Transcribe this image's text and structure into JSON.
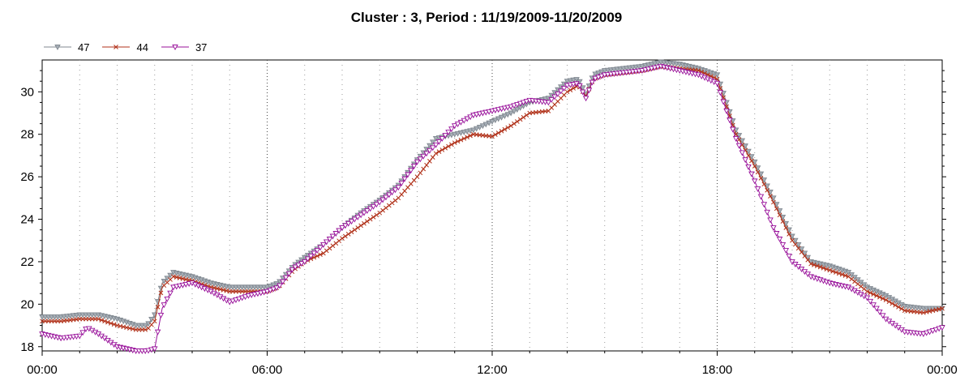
{
  "chart_data": {
    "type": "line",
    "title": "Cluster : 3, Period : 11/19/2009-11/20/2009",
    "xlabel": "",
    "ylabel": "",
    "x_unit": "hours",
    "xlim": [
      0,
      24
    ],
    "ylim": [
      17.8,
      31.5
    ],
    "x_ticks": [
      0,
      6,
      12,
      18,
      24
    ],
    "x_tick_labels": [
      "00:00",
      "06:00",
      "12:00",
      "18:00",
      "00:00"
    ],
    "y_ticks": [
      18,
      20,
      22,
      24,
      26,
      28,
      30
    ],
    "y_tick_labels": [
      "18",
      "20",
      "22",
      "24",
      "26",
      "28",
      "30"
    ],
    "grid": "dotted vertical lines",
    "legend_position": "top-left",
    "series": [
      {
        "name": "47",
        "color": "#808890",
        "marker": "triangle-down",
        "x": [
          0.0,
          0.5,
          1.0,
          1.5,
          2.0,
          2.5,
          2.8,
          3.0,
          3.2,
          3.5,
          4.0,
          4.5,
          5.0,
          5.5,
          6.0,
          6.3,
          6.7,
          7.0,
          7.5,
          8.0,
          8.5,
          9.0,
          9.5,
          10.0,
          10.5,
          11.0,
          11.5,
          12.0,
          12.5,
          13.0,
          13.5,
          14.0,
          14.3,
          14.5,
          14.7,
          15.0,
          15.5,
          16.0,
          16.5,
          17.0,
          17.5,
          18.0,
          18.5,
          19.0,
          19.5,
          20.0,
          20.5,
          21.0,
          21.5,
          22.0,
          22.5,
          23.0,
          23.5,
          24.0
        ],
        "y": [
          19.4,
          19.4,
          19.5,
          19.5,
          19.3,
          19.0,
          19.0,
          19.5,
          21.0,
          21.5,
          21.3,
          21.0,
          20.8,
          20.8,
          20.8,
          21.0,
          21.8,
          22.2,
          22.8,
          23.6,
          24.3,
          24.9,
          25.6,
          26.8,
          27.8,
          28.0,
          28.2,
          28.6,
          29.0,
          29.5,
          29.7,
          30.5,
          30.6,
          29.9,
          30.8,
          31.0,
          31.1,
          31.2,
          31.4,
          31.3,
          31.1,
          30.8,
          28.2,
          26.7,
          25.0,
          23.2,
          22.0,
          21.8,
          21.5,
          20.8,
          20.4,
          19.9,
          19.8,
          19.8
        ]
      },
      {
        "name": "44",
        "color": "#b03018",
        "marker": "x",
        "x": [
          0.0,
          0.5,
          1.0,
          1.5,
          2.0,
          2.5,
          2.8,
          3.0,
          3.2,
          3.5,
          4.0,
          4.5,
          5.0,
          5.5,
          6.0,
          6.3,
          6.7,
          7.0,
          7.5,
          8.0,
          8.5,
          9.0,
          9.5,
          10.0,
          10.5,
          11.0,
          11.5,
          12.0,
          12.5,
          13.0,
          13.5,
          14.0,
          14.3,
          14.5,
          14.7,
          15.0,
          15.5,
          16.0,
          16.5,
          17.0,
          17.5,
          18.0,
          18.5,
          19.0,
          19.5,
          20.0,
          20.5,
          21.0,
          21.5,
          22.0,
          22.5,
          23.0,
          23.5,
          24.0
        ],
        "y": [
          19.2,
          19.2,
          19.3,
          19.3,
          19.0,
          18.8,
          18.8,
          19.2,
          20.8,
          21.3,
          21.1,
          20.8,
          20.6,
          20.6,
          20.6,
          20.8,
          21.6,
          22.0,
          22.4,
          23.1,
          23.7,
          24.3,
          25.0,
          26.0,
          27.1,
          27.6,
          28.0,
          27.9,
          28.4,
          29.0,
          29.1,
          30.0,
          30.3,
          29.8,
          30.6,
          30.8,
          30.9,
          31.0,
          31.2,
          31.1,
          31.0,
          30.6,
          28.0,
          26.5,
          24.8,
          23.0,
          21.9,
          21.6,
          21.3,
          20.6,
          20.2,
          19.7,
          19.6,
          19.8
        ]
      },
      {
        "name": "37",
        "color": "#98109a",
        "marker": "triangle-down-open",
        "x": [
          0.0,
          0.5,
          1.0,
          1.2,
          1.5,
          2.0,
          2.5,
          2.8,
          3.0,
          3.2,
          3.5,
          4.0,
          4.5,
          5.0,
          5.5,
          6.0,
          6.3,
          6.7,
          7.0,
          7.5,
          8.0,
          8.5,
          9.0,
          9.5,
          10.0,
          10.5,
          11.0,
          11.5,
          12.0,
          12.5,
          13.0,
          13.5,
          14.0,
          14.3,
          14.5,
          14.7,
          15.0,
          15.5,
          16.0,
          16.5,
          17.0,
          17.5,
          18.0,
          18.5,
          19.0,
          19.5,
          20.0,
          20.5,
          21.0,
          21.5,
          22.0,
          22.5,
          23.0,
          23.5,
          24.0
        ],
        "y": [
          18.6,
          18.4,
          18.5,
          18.9,
          18.6,
          18.0,
          17.8,
          17.8,
          17.9,
          19.8,
          20.8,
          21.0,
          20.6,
          20.1,
          20.4,
          20.6,
          20.8,
          21.7,
          22.0,
          22.8,
          23.6,
          24.2,
          24.8,
          25.5,
          26.7,
          27.5,
          28.4,
          28.9,
          29.1,
          29.3,
          29.6,
          29.5,
          30.3,
          30.4,
          29.7,
          30.6,
          30.8,
          30.9,
          31.0,
          31.2,
          31.0,
          30.8,
          30.4,
          27.8,
          25.8,
          23.6,
          22.0,
          21.3,
          21.0,
          20.8,
          20.3,
          19.3,
          18.7,
          18.6,
          18.9
        ]
      }
    ]
  }
}
